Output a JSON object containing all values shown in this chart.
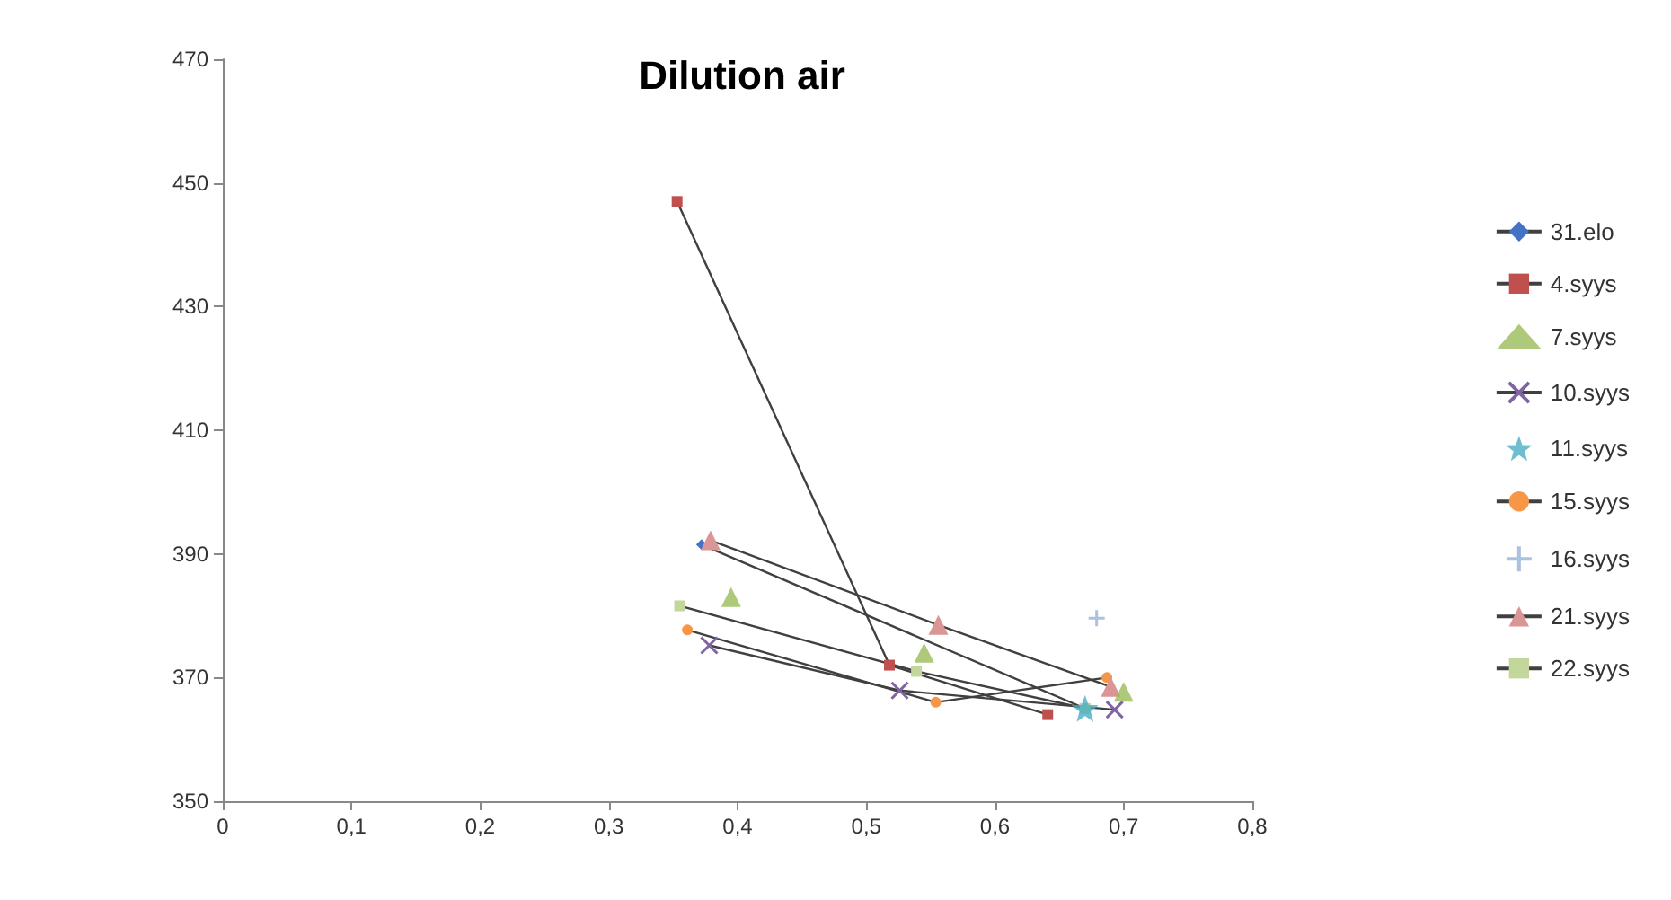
{
  "chart_data": {
    "type": "line",
    "title": "Dilution air",
    "legend": "right",
    "grid": false,
    "line_style": "solid",
    "xlim": [
      0,
      0.8
    ],
    "xticks": [
      {
        "value": 0,
        "label": "0"
      },
      {
        "value": 0.1,
        "label": "0,1"
      },
      {
        "value": 0.2,
        "label": "0,2"
      },
      {
        "value": 0.3,
        "label": "0,3"
      },
      {
        "value": 0.4,
        "label": "0,4"
      },
      {
        "value": 0.5,
        "label": "0,5"
      },
      {
        "value": 0.6,
        "label": "0,6"
      },
      {
        "value": 0.7,
        "label": "0,7"
      },
      {
        "value": 0.8,
        "label": "0,8"
      }
    ],
    "ylim": [
      350,
      470
    ],
    "yticks": [
      350,
      370,
      390,
      410,
      430,
      450,
      470
    ],
    "series": [
      {
        "name": "31.elo",
        "marker": "diamond",
        "color": "#4472c4",
        "x": [
          0.372,
          0.67
        ],
        "values": [
          391.5,
          365
        ]
      },
      {
        "name": "4.syys",
        "marker": "square",
        "color": "#c0504d",
        "x": [
          0.353,
          0.518,
          0.641
        ],
        "values": [
          447,
          372,
          364
        ]
      },
      {
        "name": "7.syys",
        "type": "scatter",
        "marker": "triangle",
        "color": "#9bbb59",
        "x": [
          0.395,
          0.545,
          0.7
        ],
        "values": [
          383,
          374,
          367.7
        ]
      },
      {
        "name": "10.syys",
        "marker": "cross",
        "color": "#8064a2",
        "x": [
          0.378,
          0.526,
          0.693
        ],
        "values": [
          375.2,
          367.9,
          364.8
        ]
      },
      {
        "name": "11.syys",
        "type": "scatter",
        "marker": "star",
        "color": "#4bacc6",
        "x": [
          0.67
        ],
        "values": [
          365
        ]
      },
      {
        "name": "15.syys",
        "marker": "circle",
        "color": "#f79646",
        "x": [
          0.361,
          0.554,
          0.687
        ],
        "values": [
          377.7,
          366,
          370
        ]
      },
      {
        "name": "16.syys",
        "type": "scatter",
        "marker": "cross",
        "color": "#95b3d7",
        "x": [
          0.679
        ],
        "values": [
          379.6
        ]
      },
      {
        "name": "21.syys",
        "marker": "triangle",
        "color": "#d99694",
        "x": [
          0.379,
          0.556,
          0.69
        ],
        "values": [
          392.2,
          378.5,
          368.5
        ]
      },
      {
        "name": "22.syys",
        "marker": "square",
        "color": "#c3d69b",
        "x": [
          0.355,
          0.539,
          0.67
        ],
        "values": [
          381.6,
          371,
          365
        ]
      }
    ]
  }
}
